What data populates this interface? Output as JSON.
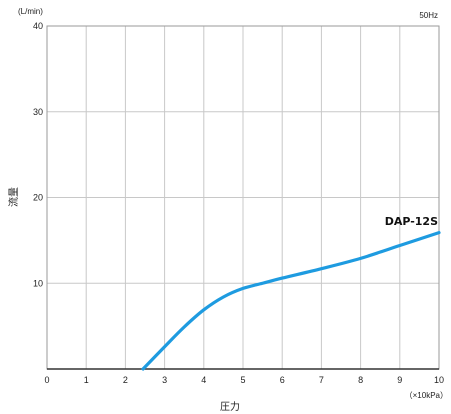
{
  "chart_data": {
    "type": "line",
    "title": "",
    "frequency_label": "50Hz",
    "xlabel": "圧力",
    "x_unit": "（×10kPa）",
    "ylabel": "流量",
    "y_unit": "(L/min)",
    "xlim": [
      0,
      10
    ],
    "ylim": [
      0,
      40
    ],
    "x_ticks": [
      "0",
      "1",
      "2",
      "3",
      "4",
      "5",
      "6",
      "7",
      "8",
      "9",
      "10"
    ],
    "y_ticks": [
      "10",
      "20",
      "30",
      "40"
    ],
    "grid": true,
    "line_color": "#1e9be0",
    "grid_color": "#c8c8c8",
    "series": [
      {
        "name": "DAP-12S",
        "x": [
          2.45,
          3.0,
          3.5,
          4.0,
          4.5,
          5.0,
          5.5,
          6.0,
          7.0,
          8.0,
          9.0,
          10.0
        ],
        "y": [
          0.0,
          2.6,
          4.9,
          6.9,
          8.4,
          9.4,
          10.0,
          10.6,
          11.7,
          12.9,
          14.4,
          15.9
        ]
      }
    ]
  }
}
